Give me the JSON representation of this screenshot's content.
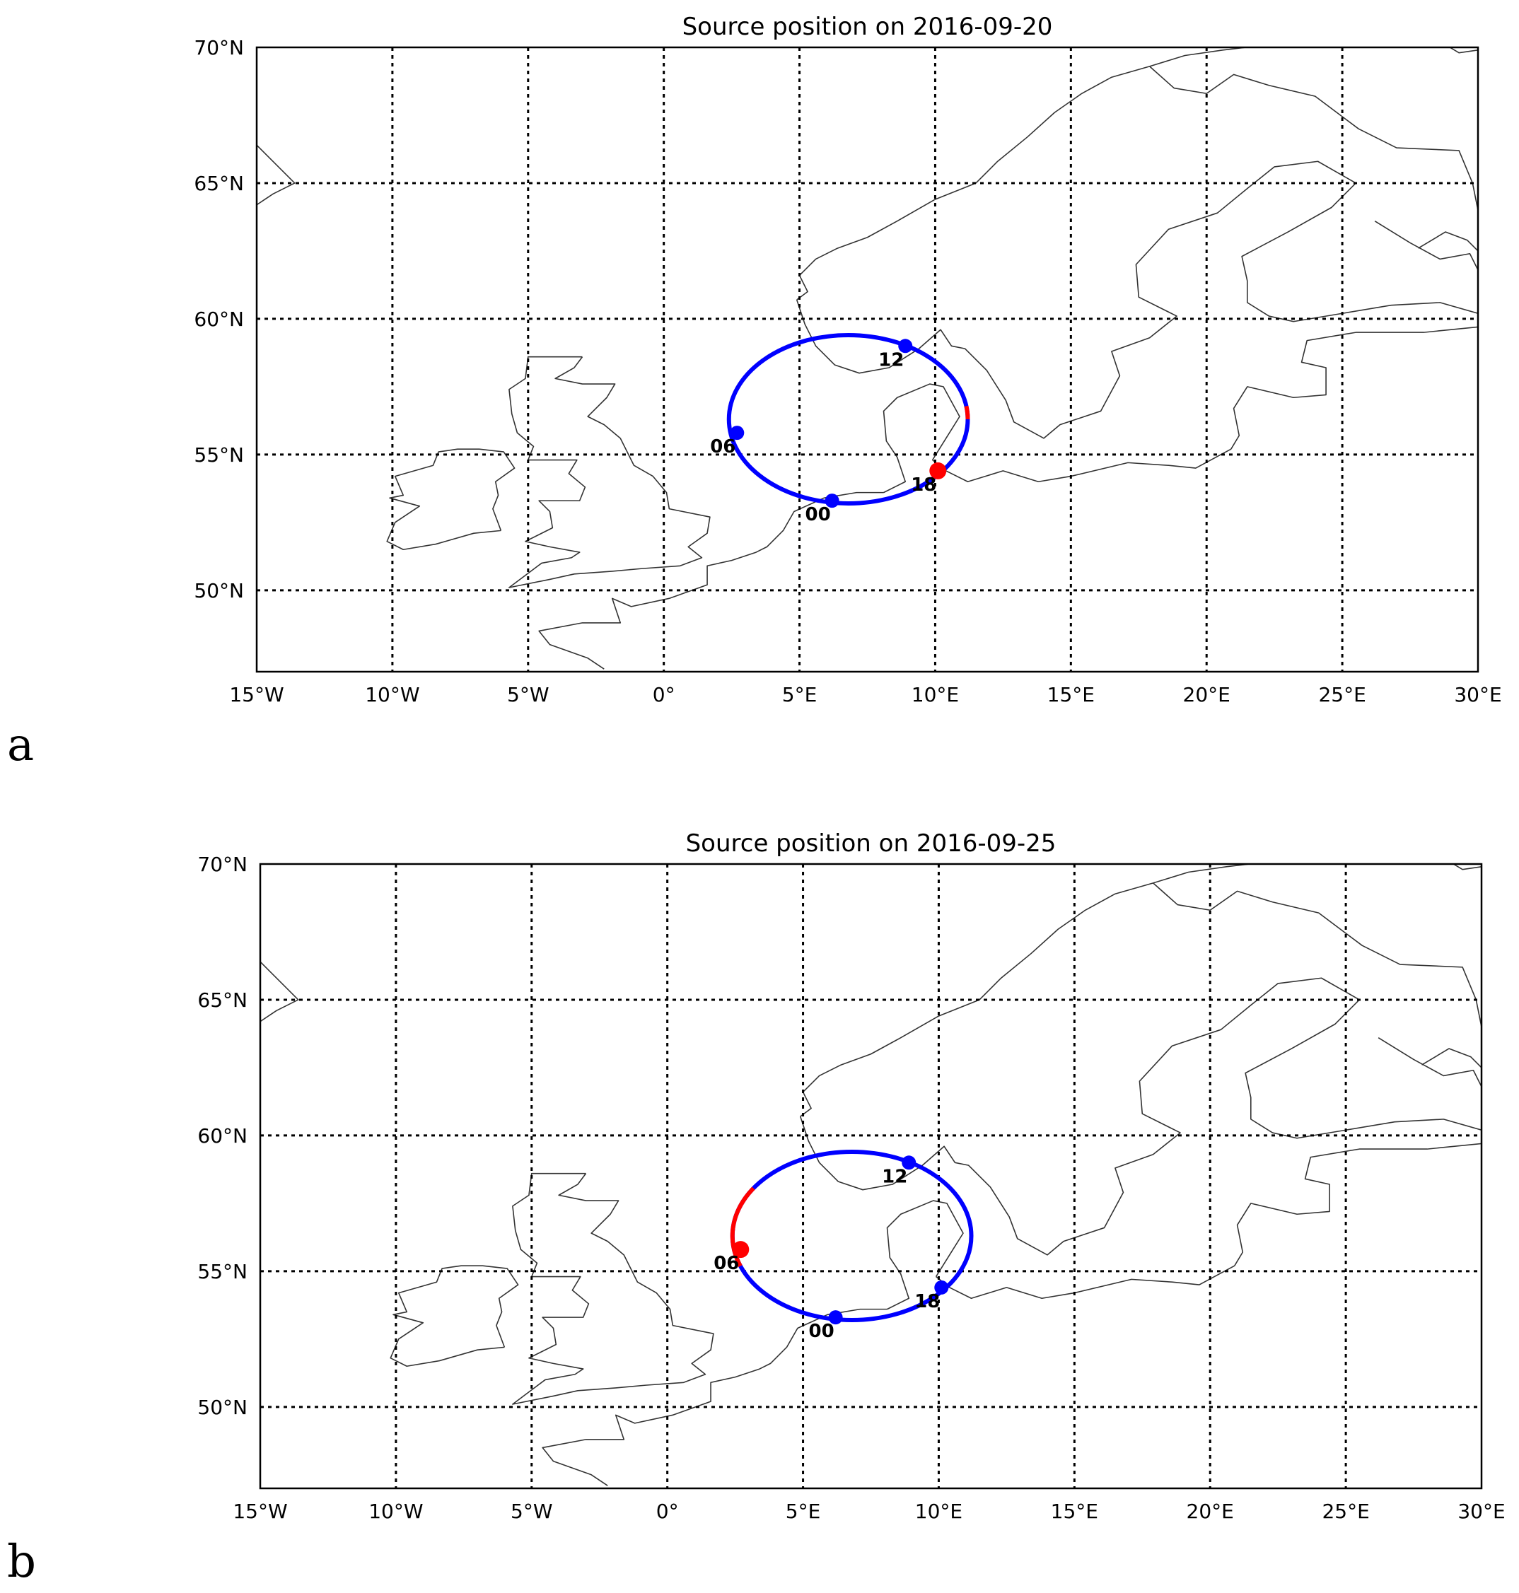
{
  "colors": {
    "orbit": "#0000ff",
    "active": "#ff0000",
    "grid": "#000000",
    "coast": "#333333"
  },
  "panels": [
    {
      "letter": "a",
      "title": "Source position on 2016-09-20",
      "active_hour": "18",
      "active_arc_hours": [
        17.4,
        18.0
      ]
    },
    {
      "letter": "b",
      "title": "Source position on 2016-09-25",
      "active_hour": "06",
      "active_arc_hours": [
        4.6,
        8.3
      ]
    }
  ],
  "chart_data": {
    "type": "map",
    "projection": "equirectangular",
    "xlim_lon": [
      -15,
      30
    ],
    "ylim_lat": [
      47,
      70
    ],
    "grid": true,
    "x_ticks": [
      {
        "lon": -15,
        "label": "15°W"
      },
      {
        "lon": -10,
        "label": "10°W"
      },
      {
        "lon": -5,
        "label": "5°W"
      },
      {
        "lon": 0,
        "label": "0°"
      },
      {
        "lon": 5,
        "label": "5°E"
      },
      {
        "lon": 10,
        "label": "10°E"
      },
      {
        "lon": 15,
        "label": "15°E"
      },
      {
        "lon": 20,
        "label": "20°E"
      },
      {
        "lon": 25,
        "label": "25°E"
      },
      {
        "lon": 30,
        "label": "30°E"
      }
    ],
    "y_ticks": [
      {
        "lat": 70,
        "label": "70°N"
      },
      {
        "lat": 65,
        "label": "65°N"
      },
      {
        "lat": 60,
        "label": "60°N"
      },
      {
        "lat": 55,
        "label": "55°N"
      },
      {
        "lat": 50,
        "label": "50°N"
      }
    ],
    "orbit": {
      "center_lon": 6.8,
      "center_lat": 56.3,
      "radius_lon": 4.4,
      "radius_lat": 3.1
    },
    "markers": [
      {
        "hour": "00",
        "lon": 6.2,
        "lat": 53.3
      },
      {
        "hour": "06",
        "lon": 2.7,
        "lat": 55.8
      },
      {
        "hour": "12",
        "lon": 8.9,
        "lat": 59.0
      },
      {
        "hour": "18",
        "lon": 10.1,
        "lat": 54.4
      }
    ]
  }
}
